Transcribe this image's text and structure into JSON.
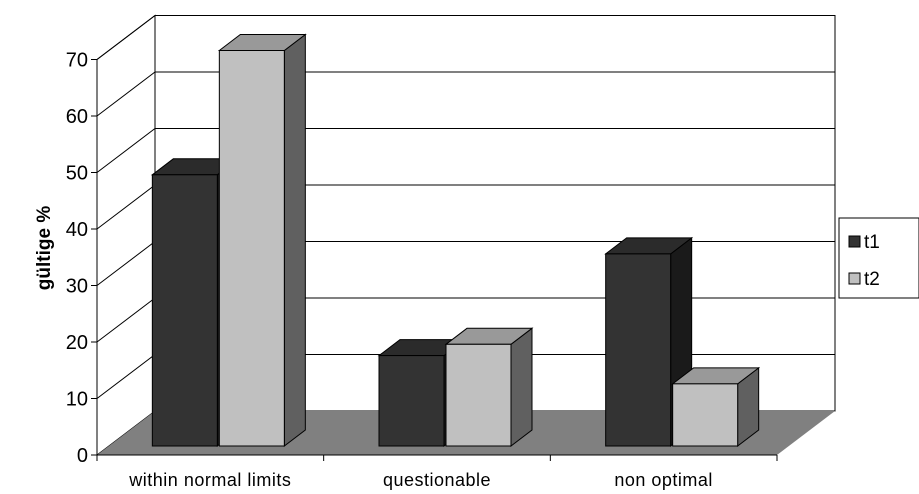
{
  "chart_data": {
    "type": "bar",
    "style": "3d-clustered-column",
    "categories": [
      "within normal limits",
      "questionable",
      "non optimal"
    ],
    "series": [
      {
        "name": "t1",
        "values": [
          48,
          16,
          34
        ],
        "color": "#333333"
      },
      {
        "name": "t2",
        "values": [
          70,
          18,
          11
        ],
        "color": "#c0c0c0"
      }
    ],
    "xlabel": "",
    "ylabel": "gültige %",
    "ylim": [
      0,
      70
    ],
    "yticks": [
      "0",
      "10",
      "20",
      "30",
      "40",
      "50",
      "60",
      "70"
    ],
    "grid": true,
    "legend_position": "right",
    "colors": {
      "floor": "#808080",
      "gridline": "#000000",
      "t1_side": "#1a1a1a",
      "t1_top": "#2b2b2b",
      "t2_side": "#606060",
      "t2_top": "#999999"
    }
  }
}
